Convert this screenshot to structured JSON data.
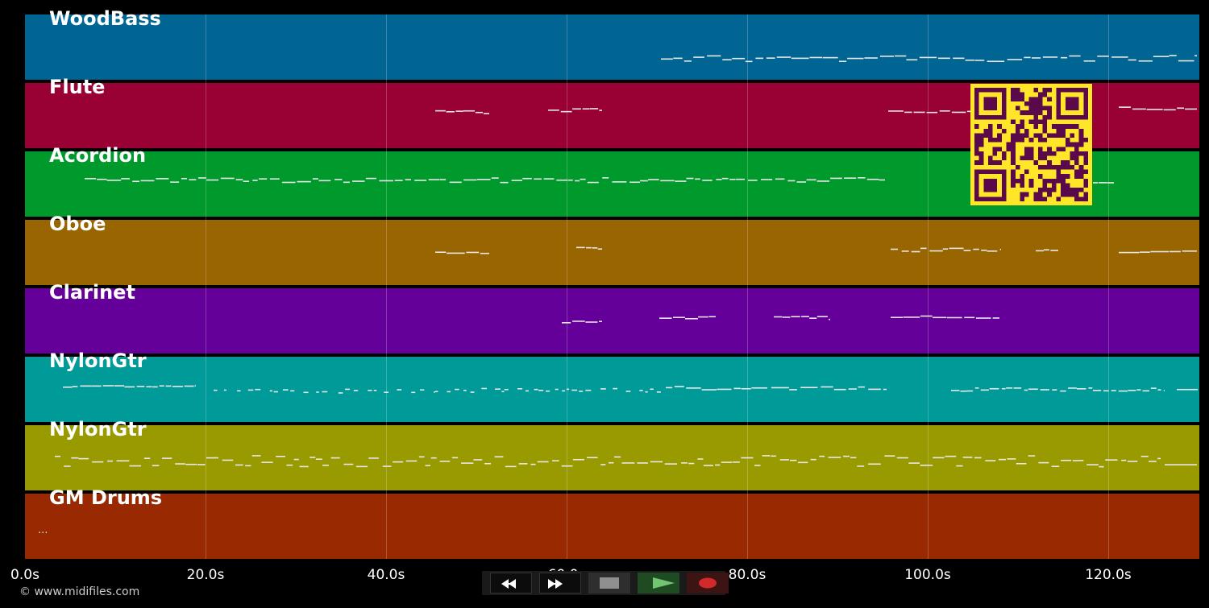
{
  "tracks": [
    {
      "name": "WoodBass",
      "color": "#016594"
    },
    {
      "name": "Flute",
      "color": "#990033"
    },
    {
      "name": "Acordion",
      "color": "#009a2c"
    },
    {
      "name": "Oboe",
      "color": "#996500"
    },
    {
      "name": "Clarinet",
      "color": "#640099"
    },
    {
      "name": "NylonGtr",
      "color": "#009a98"
    },
    {
      "name": "NylonGtr",
      "color": "#999900"
    },
    {
      "name": "GM Drums",
      "color": "#992901"
    }
  ],
  "timeline": {
    "ticks": [
      "0.0s",
      "20.0s",
      "40.0s",
      "60.0s",
      "80.0s",
      "100.0s",
      "120.0s"
    ],
    "end_seconds": 130
  },
  "drums_marker": "...",
  "copyright": "© www.midifiles.com",
  "controls": {
    "rewind": "rewind-icon",
    "fast_forward": "fast-forward-icon",
    "stop": "stop-icon",
    "play": "play-icon",
    "record": "record-icon"
  },
  "qr_colors": {
    "background": "#ffe629",
    "modules": "#5a0a4a"
  }
}
